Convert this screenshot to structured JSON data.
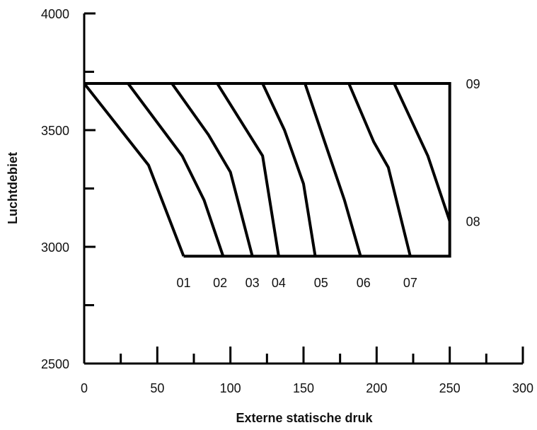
{
  "chart_data": {
    "type": "line",
    "title": "",
    "xlabel": "Externe statische druk",
    "ylabel": "Luchtdebiet",
    "xlim": [
      0,
      300
    ],
    "ylim": [
      2500,
      4000
    ],
    "x_major_ticks": [
      0,
      50,
      100,
      150,
      200,
      250,
      300
    ],
    "x_minor_ticks": [
      25,
      75,
      125,
      175,
      225,
      275
    ],
    "y_major_ticks": [
      2500,
      3000,
      3500,
      4000
    ],
    "y_minor_ticks": [
      2750,
      3250,
      3750
    ],
    "x_tick_labels": [
      "0",
      "50",
      "100",
      "150",
      "200",
      "250",
      "300"
    ],
    "y_tick_labels": [
      "2500",
      "3000",
      "3500",
      "4000"
    ],
    "grid": false,
    "legend": "none",
    "color": "#000000",
    "envelope": {
      "name": "operating-range",
      "points": [
        [
          0,
          3700
        ],
        [
          250,
          3700
        ],
        [
          250,
          2960
        ],
        [
          68,
          2960
        ]
      ]
    },
    "series": [
      {
        "name": "01",
        "points": [
          [
            0,
            3700
          ],
          [
            44,
            3350
          ],
          [
            68,
            2960
          ]
        ]
      },
      {
        "name": "02",
        "points": [
          [
            30,
            3700
          ],
          [
            67,
            3390
          ],
          [
            82,
            3200
          ],
          [
            95,
            2960
          ]
        ]
      },
      {
        "name": "03",
        "points": [
          [
            60,
            3700
          ],
          [
            85,
            3480
          ],
          [
            100,
            3320
          ],
          [
            115,
            2960
          ]
        ]
      },
      {
        "name": "04",
        "points": [
          [
            91,
            3700
          ],
          [
            109,
            3520
          ],
          [
            122,
            3390
          ],
          [
            133,
            2960
          ]
        ]
      },
      {
        "name": "05",
        "points": [
          [
            122,
            3700
          ],
          [
            137,
            3500
          ],
          [
            150,
            3270
          ],
          [
            158,
            2960
          ]
        ]
      },
      {
        "name": "06",
        "points": [
          [
            151,
            3700
          ],
          [
            165,
            3440
          ],
          [
            178,
            3200
          ],
          [
            189,
            2960
          ]
        ]
      },
      {
        "name": "07",
        "points": [
          [
            181,
            3700
          ],
          [
            198,
            3450
          ],
          [
            208,
            3340
          ],
          [
            223,
            2960
          ]
        ]
      },
      {
        "name": "08",
        "points": [
          [
            212,
            3700
          ],
          [
            235,
            3390
          ],
          [
            250,
            3110
          ]
        ]
      }
    ],
    "annotations": [
      {
        "text": "01",
        "x": 68
      },
      {
        "text": "02",
        "x": 93
      },
      {
        "text": "03",
        "x": 115
      },
      {
        "text": "04",
        "x": 133
      },
      {
        "text": "05",
        "x": 162
      },
      {
        "text": "06",
        "x": 191
      },
      {
        "text": "07",
        "x": 223
      },
      {
        "text": "08",
        "x": 250,
        "y": 3110
      },
      {
        "text": "09",
        "x": 250,
        "y": 3700
      }
    ]
  }
}
